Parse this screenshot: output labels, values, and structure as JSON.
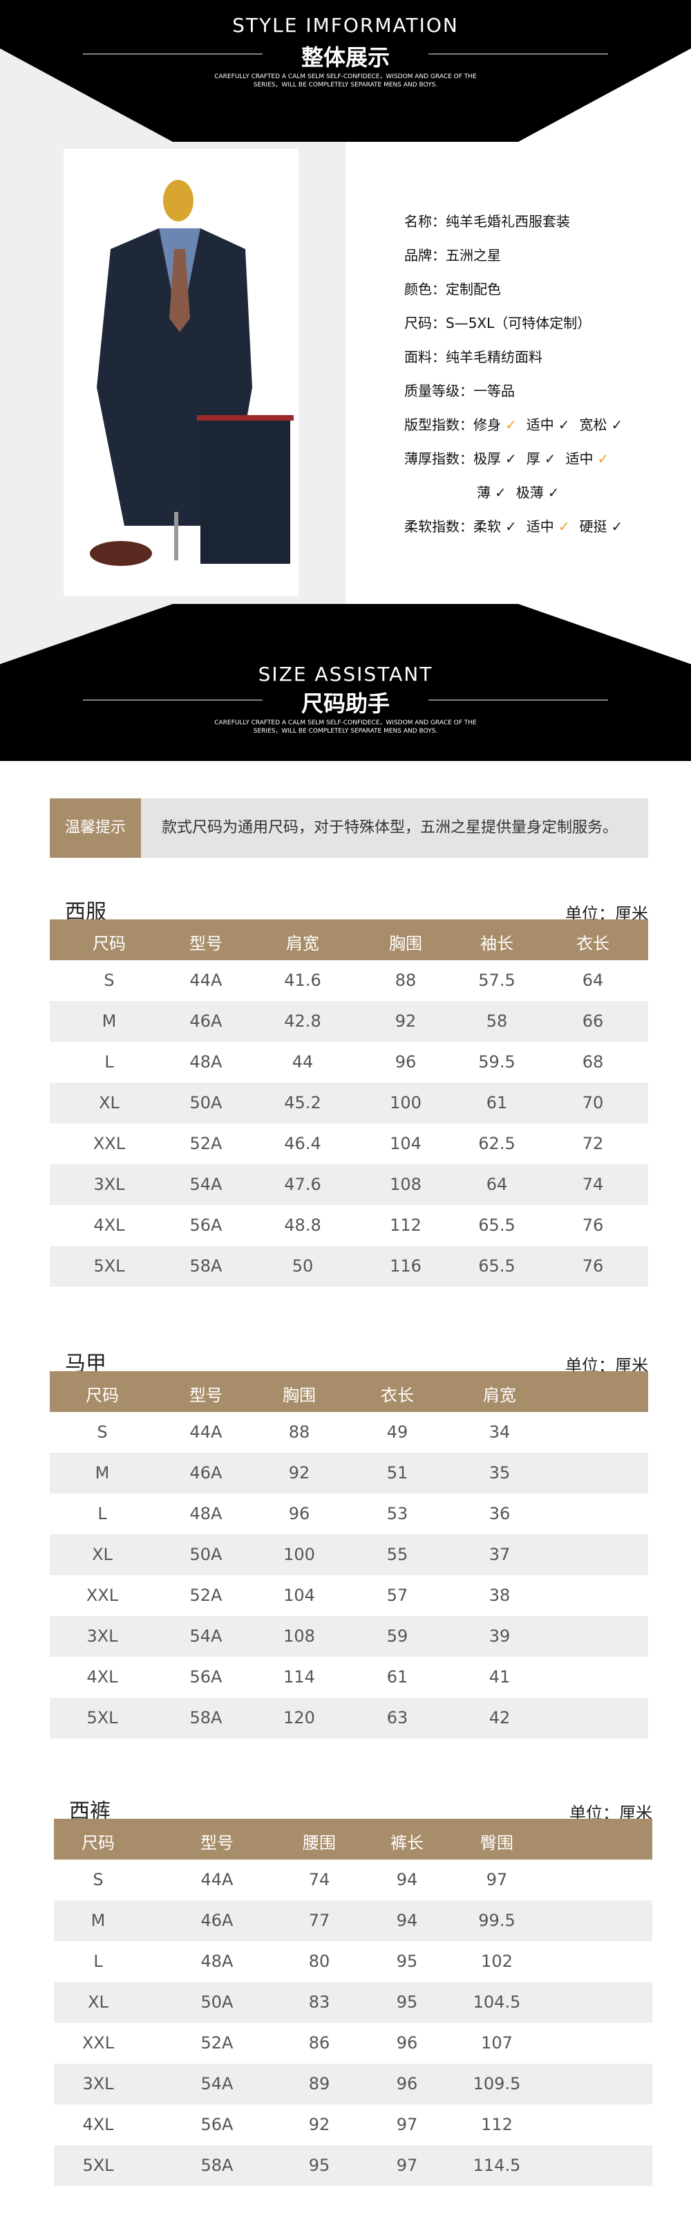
{
  "style_header": {
    "title": "STYLE IMFORMATION",
    "subtitle": "整体展示",
    "note_lines": [
      "CAREFULLY CRAFTED A CALM SELM SELF-CONFIDECE，WISDOM AND GRACE OF THE",
      "SERIES，WILL BE COMPLETELY SEPARATE MENS AND BOYS."
    ]
  },
  "specs": [
    {
      "label": "名称：",
      "value": "纯羊毛婚礼西服套装"
    },
    {
      "label": "品牌：",
      "value": "五洲之星"
    },
    {
      "label": "颜色：",
      "value": "定制配色"
    },
    {
      "label": "尺码：",
      "value": "S—5XL（可特体定制）"
    },
    {
      "label": "面料：",
      "value": "纯羊毛精纺面料"
    },
    {
      "label": "质量等级：",
      "value": "一等品"
    }
  ],
  "indices": [
    {
      "label": "版型指数：",
      "options": [
        {
          "text": "修身",
          "selected": true
        },
        {
          "text": "适中",
          "selected": false
        },
        {
          "text": "宽松",
          "selected": false
        }
      ]
    },
    {
      "label": "薄厚指数：",
      "options": [
        {
          "text": "极厚",
          "selected": false
        },
        {
          "text": "厚",
          "selected": false
        },
        {
          "text": "适中",
          "selected": true
        }
      ]
    },
    {
      "label": null,
      "options": [
        {
          "text": "薄",
          "selected": false
        },
        {
          "text": "极薄",
          "selected": false
        }
      ]
    },
    {
      "label": "柔软指数：",
      "options": [
        {
          "text": "柔软",
          "selected": false
        },
        {
          "text": "适中",
          "selected": true
        },
        {
          "text": "硬挺",
          "selected": false
        }
      ]
    }
  ],
  "size_header": {
    "title": "SIZE ASSISTANT",
    "subtitle": "尺码助手",
    "note_lines": [
      "CAREFULLY CRAFTED A CALM SELM SELF-CONFIDECE，WISDOM AND GRACE OF THE",
      "SERIES，WILL BE COMPLETELY SEPARATE MENS AND BOYS."
    ]
  },
  "tip": {
    "label": "温馨提示",
    "text": "款式尺码为通用尺码，对于特殊体型，五洲之星提供量身定制服务。"
  },
  "tables": [
    {
      "title": "西服",
      "unit": "单位：厘米",
      "columns": [
        "尺码",
        "型号",
        "肩宽",
        "胸围",
        "袖长",
        "衣长"
      ],
      "rows": [
        [
          "S",
          "44A",
          "41.6",
          "88",
          "57.5",
          "64"
        ],
        [
          "M",
          "46A",
          "42.8",
          "92",
          "58",
          "66"
        ],
        [
          "L",
          "48A",
          "44",
          "96",
          "59.5",
          "68"
        ],
        [
          "XL",
          "50A",
          "45.2",
          "100",
          "61",
          "70"
        ],
        [
          "XXL",
          "52A",
          "46.4",
          "104",
          "62.5",
          "72"
        ],
        [
          "3XL",
          "54A",
          "47.6",
          "108",
          "64",
          "74"
        ],
        [
          "4XL",
          "56A",
          "48.8",
          "112",
          "65.5",
          "76"
        ],
        [
          "5XL",
          "58A",
          "50",
          "116",
          "65.5",
          "76"
        ]
      ]
    },
    {
      "title": "马甲",
      "unit": "单位：厘米",
      "columns": [
        "尺码",
        "型号",
        "胸围",
        "衣长",
        "肩宽"
      ],
      "rows": [
        [
          "S",
          "44A",
          "88",
          "49",
          "34"
        ],
        [
          "M",
          "46A",
          "92",
          "51",
          "35"
        ],
        [
          "L",
          "48A",
          "96",
          "53",
          "36"
        ],
        [
          "XL",
          "50A",
          "100",
          "55",
          "37"
        ],
        [
          "XXL",
          "52A",
          "104",
          "57",
          "38"
        ],
        [
          "3XL",
          "54A",
          "108",
          "59",
          "39"
        ],
        [
          "4XL",
          "56A",
          "114",
          "61",
          "41"
        ],
        [
          "5XL",
          "58A",
          "120",
          "63",
          "42"
        ]
      ]
    },
    {
      "title": "西裤",
      "unit": "单位：厘米",
      "columns": [
        "尺码",
        "型号",
        "腰围",
        "裤长",
        "臀围"
      ],
      "rows": [
        [
          "S",
          "44A",
          "74",
          "94",
          "97"
        ],
        [
          "M",
          "46A",
          "77",
          "94",
          "99.5"
        ],
        [
          "L",
          "48A",
          "80",
          "95",
          "102"
        ],
        [
          "XL",
          "50A",
          "83",
          "95",
          "104.5"
        ],
        [
          "XXL",
          "52A",
          "86",
          "96",
          "107"
        ],
        [
          "3XL",
          "54A",
          "89",
          "96",
          "109.5"
        ],
        [
          "4XL",
          "56A",
          "92",
          "97",
          "112"
        ],
        [
          "5XL",
          "58A",
          "95",
          "97",
          "114.5"
        ]
      ]
    }
  ]
}
